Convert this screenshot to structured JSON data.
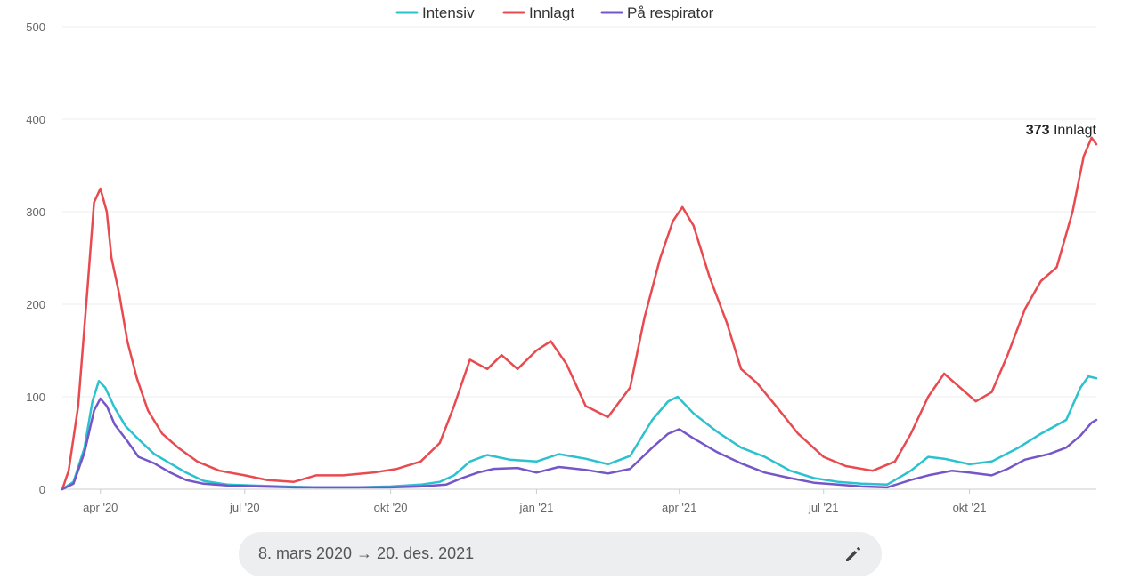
{
  "chart_data": {
    "type": "line",
    "title": "",
    "xlabel": "",
    "ylabel": "",
    "ylim": [
      0,
      500
    ],
    "yticks": [
      0,
      100,
      200,
      300,
      400,
      500
    ],
    "x_start": "2020-03-08",
    "x_end": "2021-12-20",
    "xticks": [
      {
        "label": "apr '20",
        "date": "2020-04-01"
      },
      {
        "label": "jul '20",
        "date": "2020-07-01"
      },
      {
        "label": "okt '20",
        "date": "2020-10-01"
      },
      {
        "label": "jan '21",
        "date": "2021-01-01"
      },
      {
        "label": "apr '21",
        "date": "2021-04-01"
      },
      {
        "label": "jul '21",
        "date": "2021-07-01"
      },
      {
        "label": "okt '21",
        "date": "2021-10-01"
      }
    ],
    "grid": true,
    "legend_position": "top",
    "series": [
      {
        "name": "Intensiv",
        "color": "#2bc1cf",
        "points": [
          [
            "2020-03-08",
            0
          ],
          [
            "2020-03-15",
            8
          ],
          [
            "2020-03-22",
            45
          ],
          [
            "2020-03-27",
            95
          ],
          [
            "2020-03-31",
            117
          ],
          [
            "2020-04-04",
            110
          ],
          [
            "2020-04-10",
            88
          ],
          [
            "2020-04-17",
            68
          ],
          [
            "2020-04-25",
            54
          ],
          [
            "2020-05-05",
            38
          ],
          [
            "2020-05-15",
            28
          ],
          [
            "2020-05-25",
            18
          ],
          [
            "2020-06-05",
            9
          ],
          [
            "2020-06-20",
            5
          ],
          [
            "2020-07-05",
            4
          ],
          [
            "2020-07-25",
            3
          ],
          [
            "2020-08-15",
            2
          ],
          [
            "2020-09-10",
            2
          ],
          [
            "2020-10-01",
            3
          ],
          [
            "2020-10-20",
            5
          ],
          [
            "2020-11-01",
            8
          ],
          [
            "2020-11-10",
            15
          ],
          [
            "2020-11-20",
            30
          ],
          [
            "2020-12-01",
            37
          ],
          [
            "2020-12-15",
            32
          ],
          [
            "2021-01-01",
            30
          ],
          [
            "2021-01-15",
            38
          ],
          [
            "2021-02-01",
            33
          ],
          [
            "2021-02-15",
            27
          ],
          [
            "2021-03-01",
            36
          ],
          [
            "2021-03-15",
            75
          ],
          [
            "2021-03-25",
            95
          ],
          [
            "2021-03-31",
            100
          ],
          [
            "2021-04-10",
            82
          ],
          [
            "2021-04-25",
            62
          ],
          [
            "2021-05-10",
            45
          ],
          [
            "2021-05-25",
            35
          ],
          [
            "2021-06-10",
            20
          ],
          [
            "2021-06-25",
            12
          ],
          [
            "2021-07-10",
            8
          ],
          [
            "2021-07-25",
            6
          ],
          [
            "2021-08-10",
            5
          ],
          [
            "2021-08-25",
            20
          ],
          [
            "2021-09-05",
            35
          ],
          [
            "2021-09-15",
            33
          ],
          [
            "2021-10-01",
            27
          ],
          [
            "2021-10-15",
            30
          ],
          [
            "2021-11-01",
            45
          ],
          [
            "2021-11-15",
            60
          ],
          [
            "2021-12-01",
            75
          ],
          [
            "2021-12-10",
            110
          ],
          [
            "2021-12-15",
            122
          ],
          [
            "2021-12-20",
            120
          ]
        ]
      },
      {
        "name": "Innlagt",
        "color": "#e84a4f",
        "points": [
          [
            "2020-03-08",
            0
          ],
          [
            "2020-03-12",
            20
          ],
          [
            "2020-03-18",
            90
          ],
          [
            "2020-03-24",
            220
          ],
          [
            "2020-03-28",
            310
          ],
          [
            "2020-04-01",
            325
          ],
          [
            "2020-04-05",
            300
          ],
          [
            "2020-04-08",
            250
          ],
          [
            "2020-04-13",
            210
          ],
          [
            "2020-04-18",
            160
          ],
          [
            "2020-04-24",
            120
          ],
          [
            "2020-05-01",
            85
          ],
          [
            "2020-05-10",
            60
          ],
          [
            "2020-05-20",
            45
          ],
          [
            "2020-06-01",
            30
          ],
          [
            "2020-06-15",
            20
          ],
          [
            "2020-07-01",
            15
          ],
          [
            "2020-07-15",
            10
          ],
          [
            "2020-08-01",
            8
          ],
          [
            "2020-08-15",
            15
          ],
          [
            "2020-09-01",
            15
          ],
          [
            "2020-09-20",
            18
          ],
          [
            "2020-10-05",
            22
          ],
          [
            "2020-10-20",
            30
          ],
          [
            "2020-11-01",
            50
          ],
          [
            "2020-11-10",
            90
          ],
          [
            "2020-11-20",
            140
          ],
          [
            "2020-12-01",
            130
          ],
          [
            "2020-12-10",
            145
          ],
          [
            "2020-12-20",
            130
          ],
          [
            "2021-01-01",
            150
          ],
          [
            "2021-01-10",
            160
          ],
          [
            "2021-01-20",
            135
          ],
          [
            "2021-02-01",
            90
          ],
          [
            "2021-02-15",
            78
          ],
          [
            "2021-03-01",
            110
          ],
          [
            "2021-03-10",
            185
          ],
          [
            "2021-03-20",
            250
          ],
          [
            "2021-03-28",
            290
          ],
          [
            "2021-04-03",
            305
          ],
          [
            "2021-04-10",
            285
          ],
          [
            "2021-04-20",
            230
          ],
          [
            "2021-05-01",
            180
          ],
          [
            "2021-05-10",
            130
          ],
          [
            "2021-05-20",
            115
          ],
          [
            "2021-06-01",
            90
          ],
          [
            "2021-06-15",
            60
          ],
          [
            "2021-07-01",
            35
          ],
          [
            "2021-07-15",
            25
          ],
          [
            "2021-08-01",
            20
          ],
          [
            "2021-08-15",
            30
          ],
          [
            "2021-08-25",
            60
          ],
          [
            "2021-09-05",
            100
          ],
          [
            "2021-09-15",
            125
          ],
          [
            "2021-09-25",
            110
          ],
          [
            "2021-10-05",
            95
          ],
          [
            "2021-10-15",
            105
          ],
          [
            "2021-10-25",
            145
          ],
          [
            "2021-11-05",
            195
          ],
          [
            "2021-11-15",
            225
          ],
          [
            "2021-11-25",
            240
          ],
          [
            "2021-12-05",
            300
          ],
          [
            "2021-12-12",
            360
          ],
          [
            "2021-12-17",
            380
          ],
          [
            "2021-12-20",
            373
          ]
        ]
      },
      {
        "name": "På respirator",
        "color": "#7456c9",
        "points": [
          [
            "2020-03-08",
            0
          ],
          [
            "2020-03-15",
            6
          ],
          [
            "2020-03-22",
            40
          ],
          [
            "2020-03-28",
            85
          ],
          [
            "2020-04-01",
            98
          ],
          [
            "2020-04-05",
            90
          ],
          [
            "2020-04-10",
            70
          ],
          [
            "2020-04-18",
            52
          ],
          [
            "2020-04-25",
            35
          ],
          [
            "2020-05-05",
            28
          ],
          [
            "2020-05-15",
            18
          ],
          [
            "2020-05-25",
            10
          ],
          [
            "2020-06-05",
            6
          ],
          [
            "2020-06-20",
            4
          ],
          [
            "2020-07-10",
            3
          ],
          [
            "2020-08-01",
            2
          ],
          [
            "2020-09-01",
            2
          ],
          [
            "2020-10-01",
            2
          ],
          [
            "2020-10-20",
            3
          ],
          [
            "2020-11-05",
            5
          ],
          [
            "2020-11-15",
            12
          ],
          [
            "2020-11-25",
            18
          ],
          [
            "2020-12-05",
            22
          ],
          [
            "2020-12-20",
            23
          ],
          [
            "2021-01-01",
            18
          ],
          [
            "2021-01-15",
            24
          ],
          [
            "2021-02-01",
            21
          ],
          [
            "2021-02-15",
            17
          ],
          [
            "2021-03-01",
            22
          ],
          [
            "2021-03-15",
            45
          ],
          [
            "2021-03-25",
            60
          ],
          [
            "2021-04-01",
            65
          ],
          [
            "2021-04-10",
            55
          ],
          [
            "2021-04-25",
            40
          ],
          [
            "2021-05-10",
            28
          ],
          [
            "2021-05-25",
            18
          ],
          [
            "2021-06-10",
            12
          ],
          [
            "2021-06-25",
            7
          ],
          [
            "2021-07-10",
            5
          ],
          [
            "2021-07-25",
            3
          ],
          [
            "2021-08-10",
            2
          ],
          [
            "2021-08-25",
            10
          ],
          [
            "2021-09-05",
            15
          ],
          [
            "2021-09-20",
            20
          ],
          [
            "2021-10-01",
            18
          ],
          [
            "2021-10-15",
            15
          ],
          [
            "2021-10-25",
            22
          ],
          [
            "2021-11-05",
            32
          ],
          [
            "2021-11-20",
            38
          ],
          [
            "2021-12-01",
            45
          ],
          [
            "2021-12-10",
            58
          ],
          [
            "2021-12-17",
            72
          ],
          [
            "2021-12-20",
            75
          ]
        ]
      }
    ],
    "annotation": {
      "value": "373",
      "series": "Innlagt"
    }
  },
  "date_range": {
    "label": "8. mars 2020 → 20. des. 2021",
    "edit_icon": "pencil-icon"
  }
}
